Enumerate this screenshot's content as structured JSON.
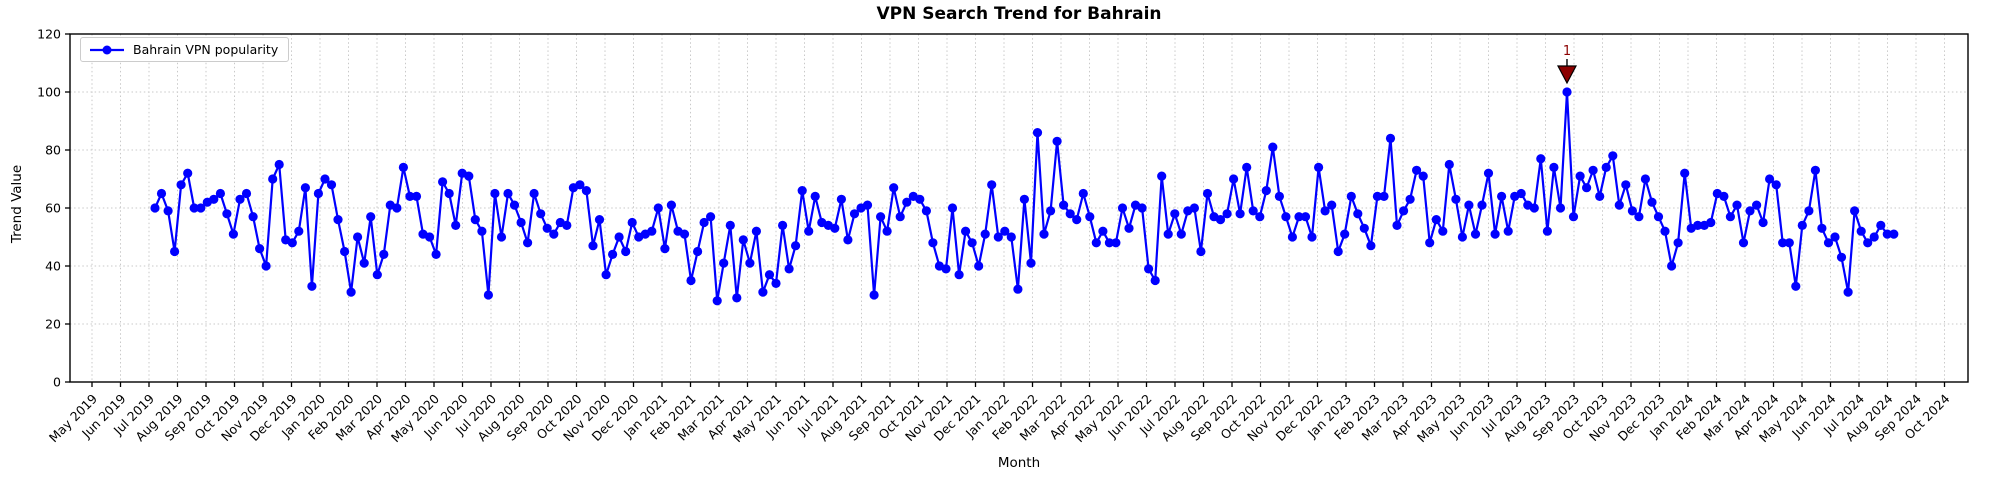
{
  "chart_data": {
    "type": "line",
    "title": "VPN Search Trend for Bahrain",
    "xlabel": "Month",
    "ylabel": "Trend Value",
    "ylim": [
      0,
      120
    ],
    "y_ticks": [
      0,
      20,
      40,
      60,
      80,
      100,
      120
    ],
    "grid": "dotted",
    "legend_position": "upper left",
    "x_tick_labels": [
      "May 2019",
      "Jun 2019",
      "Jul 2019",
      "Aug 2019",
      "Sep 2019",
      "Oct 2019",
      "Nov 2019",
      "Dec 2019",
      "Jan 2020",
      "Feb 2020",
      "Mar 2020",
      "Apr 2020",
      "May 2020",
      "Jun 2020",
      "Jul 2020",
      "Aug 2020",
      "Sep 2020",
      "Oct 2020",
      "Nov 2020",
      "Dec 2020",
      "Jan 2021",
      "Feb 2021",
      "Mar 2021",
      "Apr 2021",
      "May 2021",
      "Jun 2021",
      "Jul 2021",
      "Aug 2021",
      "Sep 2021",
      "Oct 2021",
      "Nov 2021",
      "Dec 2021",
      "Jan 2022",
      "Feb 2022",
      "Mar 2022",
      "Apr 2022",
      "May 2022",
      "Jun 2022",
      "Jul 2022",
      "Aug 2022",
      "Sep 2022",
      "Oct 2022",
      "Nov 2022",
      "Dec 2022",
      "Jan 2023",
      "Feb 2023",
      "Mar 2023",
      "Apr 2023",
      "May 2023",
      "Jun 2023",
      "Jul 2023",
      "Aug 2023",
      "Sep 2023",
      "Oct 2023",
      "Nov 2023",
      "Dec 2023",
      "Jan 2024",
      "Feb 2024",
      "Mar 2024",
      "Apr 2024",
      "May 2024",
      "Jun 2024",
      "Jul 2024",
      "Aug 2024",
      "Sep 2024",
      "Oct 2024"
    ],
    "series": [
      {
        "name": "Bahrain VPN popularity",
        "color": "#0000ff",
        "start_week": "2019-07-07",
        "interval_days": 7,
        "values": [
          60,
          65,
          59,
          45,
          68,
          72,
          60,
          60,
          62,
          63,
          65,
          58,
          51,
          63,
          65,
          57,
          46,
          40,
          70,
          75,
          49,
          48,
          52,
          67,
          33,
          65,
          70,
          68,
          56,
          45,
          31,
          50,
          41,
          57,
          37,
          44,
          61,
          60,
          74,
          64,
          64,
          51,
          50,
          44,
          69,
          65,
          54,
          72,
          71,
          56,
          52,
          30,
          65,
          50,
          65,
          61,
          55,
          48,
          65,
          58,
          53,
          51,
          55,
          54,
          67,
          68,
          66,
          47,
          56,
          37,
          44,
          50,
          45,
          55,
          50,
          51,
          52,
          60,
          46,
          61,
          52,
          51,
          35,
          45,
          55,
          57,
          28,
          41,
          54,
          29,
          49,
          41,
          52,
          31,
          37,
          34,
          54,
          39,
          47,
          66,
          52,
          64,
          55,
          54,
          53,
          63,
          49,
          58,
          60,
          61,
          30,
          57,
          52,
          67,
          57,
          62,
          64,
          63,
          59,
          48,
          40,
          39,
          60,
          37,
          52,
          48,
          40,
          51,
          68,
          50,
          52,
          50,
          32,
          63,
          41,
          86,
          51,
          59,
          83,
          61,
          58,
          56,
          65,
          57,
          48,
          52,
          48,
          48,
          60,
          53,
          61,
          60,
          39,
          35,
          71,
          51,
          58,
          51,
          59,
          60,
          45,
          65,
          57,
          56,
          58,
          70,
          58,
          74,
          59,
          57,
          66,
          81,
          64,
          57,
          50,
          57,
          57,
          50,
          74,
          59,
          61,
          45,
          51,
          64,
          58,
          53,
          47,
          64,
          64,
          84,
          54,
          59,
          63,
          73,
          71,
          48,
          56,
          52,
          75,
          63,
          50,
          61,
          51,
          61,
          72,
          51,
          64,
          52,
          64,
          65,
          61,
          60,
          77,
          52,
          74,
          60,
          100,
          57,
          71,
          67,
          73,
          64,
          74,
          78,
          61,
          68,
          59,
          57,
          70,
          62,
          57,
          52,
          40,
          48,
          72,
          53,
          54,
          54,
          55,
          65,
          64,
          57,
          61,
          48,
          59,
          61,
          55,
          70,
          68,
          48,
          48,
          33,
          54,
          59,
          73,
          53,
          48,
          50,
          43,
          31,
          59,
          52,
          48,
          50,
          54,
          51,
          51
        ]
      }
    ],
    "annotations": [
      {
        "label": "1",
        "point_index": 216,
        "value": 100,
        "approx_date": "Aug 2023",
        "marker": "triangle-down",
        "color": "#8b0000",
        "edge_color": "#000000"
      }
    ],
    "colors": {
      "line": "#0000ff",
      "grid": "#c9c9c9",
      "spine": "#000000",
      "background": "#ffffff",
      "annotation": "#8b0000"
    }
  }
}
